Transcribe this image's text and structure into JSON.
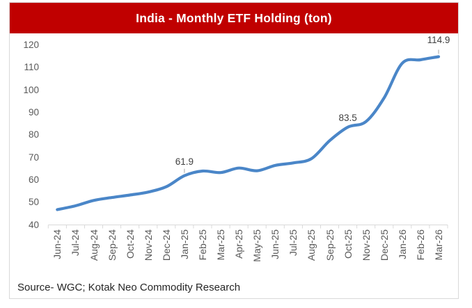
{
  "header": {
    "title": "India - Monthly ETF Holding (ton)",
    "bg_color": "#C00000",
    "text_color": "#FFFFFF"
  },
  "footer": {
    "source_text": "Source- WGC; Kotak Neo Commodity Research"
  },
  "chart_data": {
    "type": "line",
    "title": "India - Monthly ETF Holding (ton)",
    "xlabel": "",
    "ylabel": "",
    "categories": [
      "Jun-24",
      "Jul-24",
      "Aug-24",
      "Sep-24",
      "Oct-24",
      "Nov-24",
      "Dec-24",
      "Jan-25",
      "Feb-25",
      "Mar-25",
      "Apr-25",
      "May-25",
      "Jun-25",
      "Jul-25",
      "Aug-25",
      "Sep-25",
      "Oct-25",
      "Nov-25",
      "Dec-25",
      "Jan-26",
      "Feb-26",
      "Mar-26"
    ],
    "series": [
      {
        "name": "India Monthly ETF Holding (ton)",
        "values": [
          46.8,
          48.5,
          50.9,
          52.2,
          53.3,
          54.6,
          57.0,
          61.9,
          64.0,
          63.3,
          65.3,
          64.1,
          66.5,
          67.6,
          69.5,
          77.5,
          83.5,
          86.0,
          96.5,
          112.0,
          113.5,
          114.9
        ]
      }
    ],
    "ylim": [
      40,
      120
    ],
    "yticks": [
      40,
      50,
      60,
      70,
      80,
      90,
      100,
      110,
      120
    ],
    "grid": false,
    "legend": "none",
    "smooth": true,
    "annotations": [
      {
        "category": "Jan-25",
        "index": 7,
        "label": "61.9",
        "dy": -28,
        "leader": true
      },
      {
        "category": "Oct-25",
        "index": 16,
        "label": "83.5",
        "dy": -21,
        "leader": false
      },
      {
        "category": "Mar-26",
        "index": 21,
        "label": "114.9",
        "dy": -32,
        "leader": true
      }
    ],
    "style": {
      "line_color": "#4A86C8",
      "axis_color": "#D9D9D9",
      "tick_label_color": "#595959",
      "annotation_color": "#404040",
      "leader_color": "#A6A6A6"
    }
  }
}
